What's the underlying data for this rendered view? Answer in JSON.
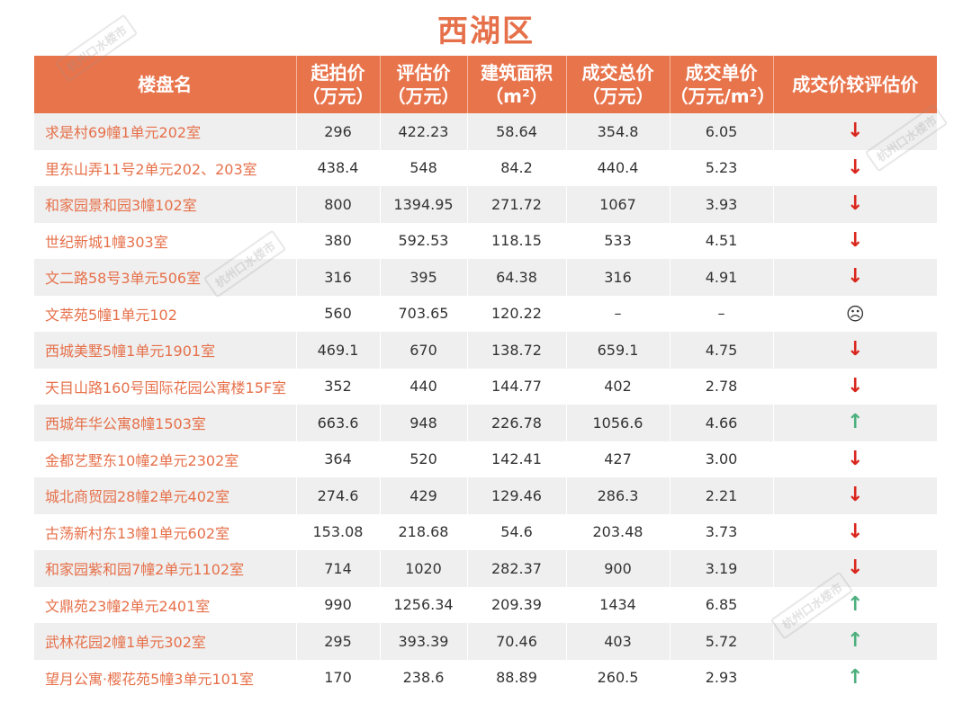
{
  "title": "西湖区",
  "headers": {
    "name": "楼盘名",
    "start_price": [
      "起拍价",
      "（万元）"
    ],
    "appraisal": [
      "评估价",
      "（万元）"
    ],
    "area": [
      "建筑面积",
      "（m²）"
    ],
    "total": [
      "成交总价",
      "（万元）"
    ],
    "unit": [
      "成交单价",
      "（万元/m²）"
    ],
    "compare": "成交价较评估价"
  },
  "rows": [
    {
      "name": "求是村69幢1单元202室",
      "start": "296",
      "appraisal": "422.23",
      "area": "58.64",
      "total": "354.8",
      "unit": "6.05",
      "trend": "down",
      "symbol": "↓"
    },
    {
      "name": "里东山弄11号2单元202、203室",
      "start": "438.4",
      "appraisal": "548",
      "area": "84.2",
      "total": "440.4",
      "unit": "5.23",
      "trend": "down",
      "symbol": "↓"
    },
    {
      "name": "和家园景和园3幢102室",
      "start": "800",
      "appraisal": "1394.95",
      "area": "271.72",
      "total": "1067",
      "unit": "3.93",
      "trend": "down",
      "symbol": "↓"
    },
    {
      "name": "世纪新城1幢303室",
      "start": "380",
      "appraisal": "592.53",
      "area": "118.15",
      "total": "533",
      "unit": "4.51",
      "trend": "down",
      "symbol": "↓"
    },
    {
      "name": "文二路58号3单元506室",
      "start": "316",
      "appraisal": "395",
      "area": "64.38",
      "total": "316",
      "unit": "4.91",
      "trend": "down",
      "symbol": "↓"
    },
    {
      "name": "文萃苑5幢1单元102",
      "start": "560",
      "appraisal": "703.65",
      "area": "120.22",
      "total": "–",
      "unit": "–",
      "trend": "neutral",
      "symbol": "☹"
    },
    {
      "name": "西城美墅5幢1单元1901室",
      "start": "469.1",
      "appraisal": "670",
      "area": "138.72",
      "total": "659.1",
      "unit": "4.75",
      "trend": "down",
      "symbol": "↓"
    },
    {
      "name": "天目山路160号国际花园公寓楼15F室",
      "start": "352",
      "appraisal": "440",
      "area": "144.77",
      "total": "402",
      "unit": "2.78",
      "trend": "down",
      "symbol": "↓"
    },
    {
      "name": "西城年华公寓8幢1503室",
      "start": "663.6",
      "appraisal": "948",
      "area": "226.78",
      "total": "1056.6",
      "unit": "4.66",
      "trend": "up",
      "symbol": "↑"
    },
    {
      "name": "金都艺墅东10幢2单元2302室",
      "start": "364",
      "appraisal": "520",
      "area": "142.41",
      "total": "427",
      "unit": "3.00",
      "trend": "down",
      "symbol": "↓"
    },
    {
      "name": "城北商贸园28幢2单元402室",
      "start": "274.6",
      "appraisal": "429",
      "area": "129.46",
      "total": "286.3",
      "unit": "2.21",
      "trend": "down",
      "symbol": "↓"
    },
    {
      "name": "古荡新村东13幢1单元602室",
      "start": "153.08",
      "appraisal": "218.68",
      "area": "54.6",
      "total": "203.48",
      "unit": "3.73",
      "trend": "down",
      "symbol": "↓"
    },
    {
      "name": "和家园紫和园7幢2单元1102室",
      "start": "714",
      "appraisal": "1020",
      "area": "282.37",
      "total": "900",
      "unit": "3.19",
      "trend": "down",
      "symbol": "↓"
    },
    {
      "name": "文鼎苑23幢2单元2401室",
      "start": "990",
      "appraisal": "1256.34",
      "area": "209.39",
      "total": "1434",
      "unit": "6.85",
      "trend": "up",
      "symbol": "↑"
    },
    {
      "name": "武林花园2幢1单元302室",
      "start": "295",
      "appraisal": "393.39",
      "area": "70.46",
      "total": "403",
      "unit": "5.72",
      "trend": "up",
      "symbol": "↑"
    },
    {
      "name": "望月公寓·樱花苑5幢3单元101室",
      "start": "170",
      "appraisal": "238.6",
      "area": "88.89",
      "total": "260.5",
      "unit": "2.93",
      "trend": "up",
      "symbol": "↑"
    }
  ],
  "watermark": "杭州口水楼市"
}
